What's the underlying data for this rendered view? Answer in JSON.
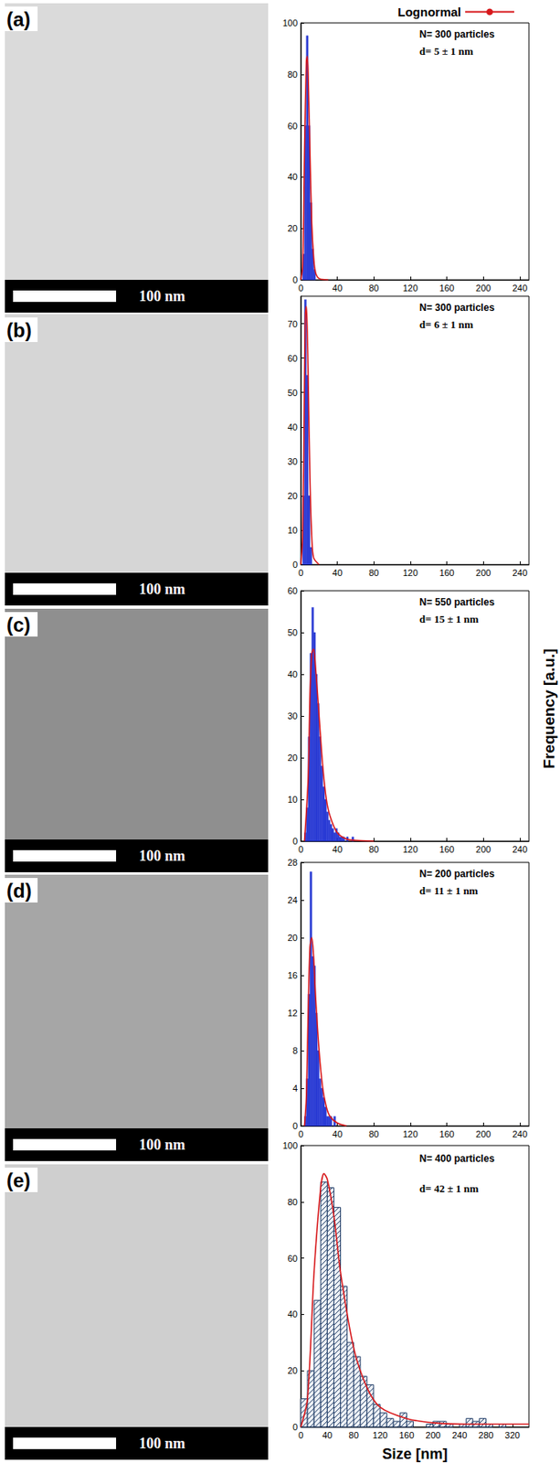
{
  "chart_data": [
    {
      "type": "histogram",
      "panel": "(a)",
      "scale_bar": "100 nm",
      "annotations": [
        "N= 300 particles",
        "d= 5 ± 1 nm"
      ],
      "bins": [
        2,
        4,
        6,
        8,
        10,
        12,
        14,
        16
      ],
      "values": [
        10,
        60,
        95,
        60,
        30,
        12,
        4
      ],
      "color": "#2a3bd4",
      "series": [
        {
          "name": "Lognormal",
          "type": "line",
          "color": "#d7191c",
          "x": [
            0,
            2,
            4,
            6,
            7,
            8,
            10,
            12,
            14,
            16,
            20,
            30
          ],
          "values": [
            0,
            5,
            50,
            85,
            87,
            80,
            50,
            22,
            9,
            3,
            0.5,
            0
          ]
        }
      ],
      "legend": "top",
      "xlim": [
        0,
        250
      ],
      "xticks": [
        0,
        40,
        80,
        120,
        160,
        200,
        240
      ],
      "ylim": [
        0,
        100
      ],
      "yticks": [
        0,
        20,
        40,
        60,
        80,
        100
      ]
    },
    {
      "type": "histogram",
      "panel": "(b)",
      "scale_bar": "100 nm",
      "annotations": [
        "N= 300 particles",
        "d= 6 ± 1 nm"
      ],
      "bins": [
        2,
        4,
        6,
        8,
        10,
        12
      ],
      "values": [
        20,
        77,
        55,
        20,
        5
      ],
      "color": "#2a3bd4",
      "series": [
        {
          "name": "Lognormal",
          "type": "line",
          "color": "#d7191c",
          "x": [
            0,
            2,
            4,
            5,
            6,
            7,
            8,
            10,
            12,
            14,
            20
          ],
          "values": [
            0,
            8,
            55,
            73,
            75,
            68,
            55,
            25,
            8,
            2,
            0
          ]
        }
      ],
      "xlim": [
        0,
        250
      ],
      "xticks": [
        0,
        40,
        80,
        120,
        160,
        200,
        240
      ],
      "ylim": [
        0,
        78
      ],
      "yticks": [
        0,
        10,
        20,
        30,
        40,
        50,
        60,
        70
      ]
    },
    {
      "type": "histogram",
      "panel": "(c)",
      "scale_bar": "100 nm",
      "annotations": [
        "N= 550 particles",
        "d= 15 ± 1 nm"
      ],
      "y_label": "Frequency [a.u.]",
      "bins": [
        4,
        6,
        8,
        10,
        12,
        14,
        16,
        18,
        20,
        22,
        24,
        26,
        28,
        30,
        32,
        34,
        36,
        38,
        40,
        42,
        44,
        46,
        48,
        50,
        52,
        54,
        56,
        58,
        60
      ],
      "values": [
        2,
        8,
        25,
        45,
        56,
        50,
        40,
        33,
        25,
        18,
        13,
        10,
        7,
        5,
        4,
        3,
        2,
        3,
        2,
        1,
        1,
        1,
        0,
        1,
        0,
        0,
        1,
        0
      ],
      "color": "#2a3bd4",
      "series": [
        {
          "name": "Lognormal",
          "type": "line",
          "color": "#d7191c",
          "x": [
            4,
            8,
            10,
            12,
            14,
            16,
            20,
            24,
            28,
            32,
            40,
            50,
            60,
            80
          ],
          "values": [
            0,
            15,
            35,
            45,
            46,
            42,
            30,
            18,
            10,
            6,
            2,
            0.5,
            0.2,
            0
          ]
        }
      ],
      "xlim": [
        0,
        250
      ],
      "xticks": [
        0,
        40,
        80,
        120,
        160,
        200,
        240
      ],
      "ylim": [
        0,
        60
      ],
      "yticks": [
        0,
        10,
        20,
        30,
        40,
        50,
        60
      ]
    },
    {
      "type": "histogram",
      "panel": "(d)",
      "scale_bar": "100 nm",
      "annotations": [
        "N= 200 particles",
        "d= 11 ± 1 nm"
      ],
      "bins": [
        4,
        6,
        8,
        10,
        12,
        14,
        16,
        18,
        20,
        22,
        24,
        26,
        28,
        30,
        32,
        34,
        36,
        38,
        40
      ],
      "values": [
        1,
        5,
        14,
        27,
        18,
        17,
        12,
        8,
        5,
        4,
        3,
        2,
        1,
        1,
        1,
        0,
        1,
        0
      ],
      "color": "#2a3bd4",
      "series": [
        {
          "name": "Lognormal",
          "type": "line",
          "color": "#d7191c",
          "x": [
            4,
            6,
            8,
            10,
            12,
            14,
            16,
            20,
            24,
            28,
            32,
            40,
            50
          ],
          "values": [
            0,
            3,
            12,
            19,
            20,
            18,
            14,
            8,
            4,
            2,
            1,
            0.3,
            0
          ]
        }
      ],
      "xlim": [
        0,
        250
      ],
      "xticks": [
        0,
        40,
        80,
        120,
        160,
        200,
        240
      ],
      "ylim": [
        0,
        28
      ],
      "yticks": [
        0,
        4,
        8,
        12,
        16,
        20,
        24,
        28
      ]
    },
    {
      "type": "histogram",
      "panel": "(e)",
      "scale_bar": "100 nm",
      "annotations": [
        "N= 400 particles",
        "d= 42 ± 1 nm"
      ],
      "x_label": "Size [nm]",
      "bins": [
        0,
        10,
        20,
        30,
        40,
        50,
        60,
        70,
        80,
        90,
        100,
        110,
        120,
        130,
        140,
        150,
        160,
        170,
        180,
        190,
        200,
        210,
        220,
        230,
        240,
        250,
        260,
        270,
        280,
        290,
        300,
        310,
        320,
        330,
        340
      ],
      "values": [
        10,
        20,
        45,
        87,
        85,
        78,
        50,
        30,
        25,
        18,
        15,
        8,
        5,
        3,
        2,
        5,
        2,
        0,
        0,
        1,
        2,
        2,
        1,
        0,
        1,
        3,
        2,
        3,
        1,
        0,
        1,
        0,
        0,
        0
      ],
      "color": "#1f3b66",
      "series": [
        {
          "name": "Lognormal",
          "type": "line",
          "color": "#d7191c",
          "x": [
            0,
            10,
            20,
            30,
            35,
            40,
            50,
            60,
            80,
            100,
            120,
            160,
            200,
            250,
            300,
            345
          ],
          "values": [
            0,
            10,
            55,
            85,
            90,
            88,
            75,
            55,
            28,
            14,
            7,
            3,
            1.5,
            1,
            1,
            1
          ]
        }
      ],
      "xlim": [
        0,
        345
      ],
      "xticks": [
        0,
        40,
        80,
        120,
        160,
        200,
        240,
        280,
        320
      ],
      "ylim": [
        0,
        100
      ],
      "yticks": [
        0,
        20,
        40,
        60,
        80,
        100
      ]
    }
  ]
}
